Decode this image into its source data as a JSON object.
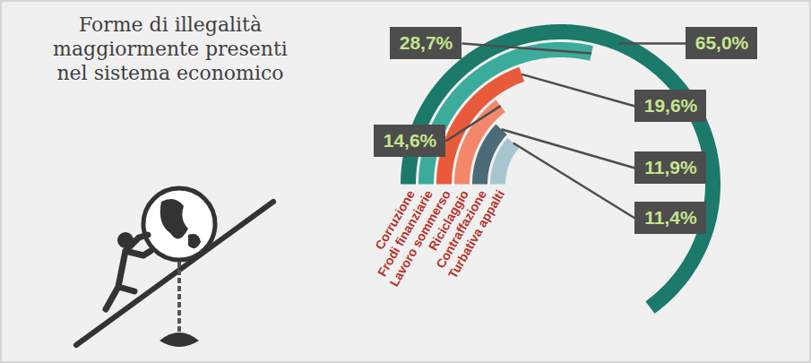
{
  "chart_data": {
    "type": "radial_bar",
    "title": "Forme di illegalità maggiormente presenti nel sistema economico",
    "categories": [
      "Corruzione",
      "Frodi finanziarie",
      "Lavoro sommerso",
      "Riciclaggio",
      "Contraffazione",
      "Turbativa appalti"
    ],
    "values": [
      65.0,
      28.7,
      19.6,
      14.6,
      11.9,
      11.4
    ],
    "value_labels": [
      "65,0%",
      "28,7%",
      "19,6%",
      "14,6%",
      "11,9%",
      "11,4%"
    ],
    "colors": [
      "#1b7a6a",
      "#3bab9c",
      "#e85a3a",
      "#f4876a",
      "#4b6b78",
      "#a7c5cf"
    ],
    "xlim": [
      0,
      100
    ],
    "data_labels": true
  }
}
